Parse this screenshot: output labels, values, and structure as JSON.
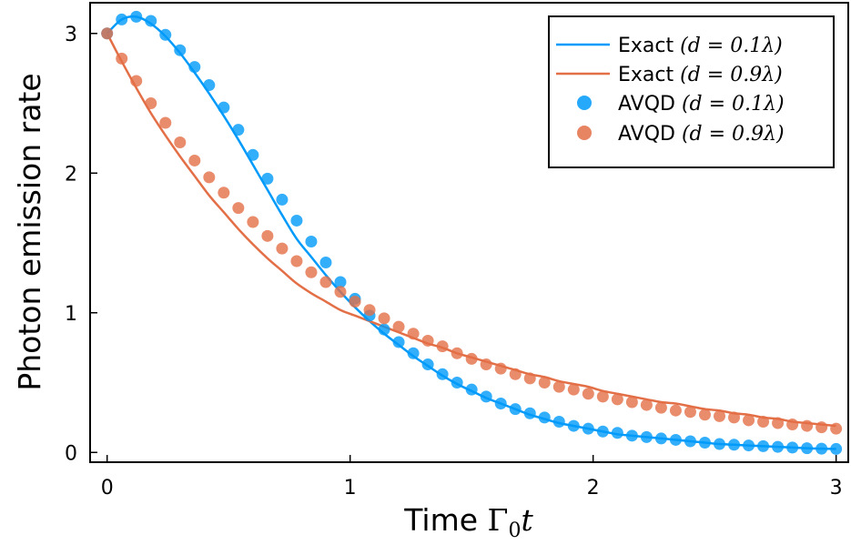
{
  "chart_data": {
    "type": "scatter",
    "xlabel_prefix": "Time",
    "xlabel_math_symbol": "Γ",
    "xlabel_math_sub": "0",
    "xlabel_math_var": "t",
    "ylabel": "Photon emission rate",
    "xlim": [
      -0.07,
      3.05
    ],
    "ylim": [
      -0.07,
      3.22
    ],
    "x_ticks": [
      0,
      1,
      2,
      3
    ],
    "x_tick_labels": [
      "0",
      "1",
      "2",
      "3"
    ],
    "y_ticks": [
      0,
      1,
      2,
      3
    ],
    "y_tick_labels": [
      "0",
      "1",
      "2",
      "3"
    ],
    "grid": false,
    "legend_position": "top-right",
    "colors": {
      "blue": "#009AFA",
      "orange": "#E36F47",
      "frame": "#000000"
    },
    "legend": [
      {
        "label": "Exact",
        "math": "(d = 0.1λ)",
        "kind": "line",
        "color": "#009AFA"
      },
      {
        "label": "Exact",
        "math": "(d = 0.9λ)",
        "kind": "line",
        "color": "#E36F47"
      },
      {
        "label": "AVQD",
        "math": "(d = 0.1λ)",
        "kind": "marker",
        "color": "#009AFA"
      },
      {
        "label": "AVQD",
        "math": "(d = 0.9λ)",
        "kind": "marker",
        "color": "#E36F47"
      }
    ],
    "series": [
      {
        "name": "Exact (d = 0.1λ)",
        "kind": "line",
        "color": "#009AFA",
        "x": [
          0,
          0.06,
          0.12,
          0.18,
          0.24,
          0.3,
          0.36,
          0.42,
          0.48,
          0.54,
          0.6,
          0.66,
          0.72,
          0.78,
          0.84,
          0.9,
          0.96,
          1.02,
          1.08,
          1.14,
          1.2,
          1.26,
          1.32,
          1.38,
          1.44,
          1.5,
          1.56,
          1.62,
          1.68,
          1.74,
          1.8,
          1.86,
          1.92,
          1.98,
          2.04,
          2.1,
          2.16,
          2.22,
          2.28,
          2.34,
          2.4,
          2.46,
          2.52,
          2.58,
          2.64,
          2.7,
          2.76,
          2.82,
          2.88,
          2.94,
          3.0
        ],
        "y": [
          3.0,
          3.1,
          3.12,
          3.07,
          2.98,
          2.86,
          2.72,
          2.57,
          2.41,
          2.24,
          2.06,
          1.88,
          1.7,
          1.53,
          1.4,
          1.27,
          1.15,
          1.04,
          0.94,
          0.85,
          0.77,
          0.69,
          0.62,
          0.55,
          0.49,
          0.44,
          0.39,
          0.35,
          0.31,
          0.27,
          0.24,
          0.21,
          0.19,
          0.17,
          0.15,
          0.13,
          0.12,
          0.11,
          0.1,
          0.09,
          0.08,
          0.07,
          0.06,
          0.055,
          0.05,
          0.045,
          0.04,
          0.035,
          0.03,
          0.027,
          0.025
        ]
      },
      {
        "name": "Exact (d = 0.9λ)",
        "kind": "line",
        "color": "#E36F47",
        "x": [
          0,
          0.06,
          0.12,
          0.18,
          0.24,
          0.3,
          0.36,
          0.42,
          0.48,
          0.54,
          0.6,
          0.66,
          0.72,
          0.78,
          0.84,
          0.9,
          0.96,
          1.02,
          1.08,
          1.14,
          1.2,
          1.26,
          1.32,
          1.38,
          1.44,
          1.5,
          1.56,
          1.62,
          1.68,
          1.74,
          1.8,
          1.86,
          1.92,
          1.98,
          2.04,
          2.1,
          2.16,
          2.22,
          2.28,
          2.34,
          2.4,
          2.46,
          2.52,
          2.58,
          2.64,
          2.7,
          2.76,
          2.82,
          2.88,
          2.94,
          3.0
        ],
        "y": [
          3.0,
          2.8,
          2.61,
          2.43,
          2.27,
          2.12,
          1.98,
          1.84,
          1.72,
          1.6,
          1.49,
          1.39,
          1.3,
          1.21,
          1.14,
          1.08,
          1.02,
          0.98,
          0.94,
          0.9,
          0.86,
          0.82,
          0.78,
          0.75,
          0.71,
          0.68,
          0.65,
          0.62,
          0.59,
          0.56,
          0.54,
          0.51,
          0.49,
          0.47,
          0.44,
          0.42,
          0.4,
          0.38,
          0.36,
          0.35,
          0.33,
          0.31,
          0.3,
          0.28,
          0.27,
          0.25,
          0.24,
          0.22,
          0.21,
          0.2,
          0.19
        ]
      },
      {
        "name": "AVQD (d = 0.1λ)",
        "kind": "marker",
        "color": "#009AFA",
        "x": [
          0,
          0.06,
          0.12,
          0.18,
          0.24,
          0.3,
          0.36,
          0.42,
          0.48,
          0.54,
          0.6,
          0.66,
          0.72,
          0.78,
          0.84,
          0.9,
          0.96,
          1.02,
          1.08,
          1.14,
          1.2,
          1.26,
          1.32,
          1.38,
          1.44,
          1.5,
          1.56,
          1.62,
          1.68,
          1.74,
          1.8,
          1.86,
          1.92,
          1.98,
          2.04,
          2.1,
          2.16,
          2.22,
          2.28,
          2.34,
          2.4,
          2.46,
          2.52,
          2.58,
          2.64,
          2.7,
          2.76,
          2.82,
          2.88,
          2.94,
          3.0
        ],
        "y": [
          3.0,
          3.1,
          3.12,
          3.09,
          2.99,
          2.88,
          2.76,
          2.63,
          2.47,
          2.31,
          2.13,
          1.96,
          1.81,
          1.66,
          1.51,
          1.36,
          1.22,
          1.1,
          0.98,
          0.88,
          0.79,
          0.71,
          0.63,
          0.56,
          0.5,
          0.45,
          0.4,
          0.35,
          0.31,
          0.28,
          0.25,
          0.22,
          0.19,
          0.17,
          0.15,
          0.14,
          0.12,
          0.11,
          0.1,
          0.09,
          0.08,
          0.07,
          0.06,
          0.055,
          0.05,
          0.045,
          0.04,
          0.035,
          0.03,
          0.027,
          0.025
        ]
      },
      {
        "name": "AVQD (d = 0.9λ)",
        "kind": "marker",
        "color": "#E36F47",
        "x": [
          0,
          0.06,
          0.12,
          0.18,
          0.24,
          0.3,
          0.36,
          0.42,
          0.48,
          0.54,
          0.6,
          0.66,
          0.72,
          0.78,
          0.84,
          0.9,
          0.96,
          1.02,
          1.08,
          1.14,
          1.2,
          1.26,
          1.32,
          1.38,
          1.44,
          1.5,
          1.56,
          1.62,
          1.68,
          1.74,
          1.8,
          1.86,
          1.92,
          1.98,
          2.04,
          2.1,
          2.16,
          2.22,
          2.28,
          2.34,
          2.4,
          2.46,
          2.52,
          2.58,
          2.64,
          2.7,
          2.76,
          2.82,
          2.88,
          2.94,
          3.0
        ],
        "y": [
          3.0,
          2.82,
          2.66,
          2.5,
          2.36,
          2.22,
          2.09,
          1.97,
          1.86,
          1.75,
          1.65,
          1.55,
          1.46,
          1.37,
          1.29,
          1.22,
          1.15,
          1.08,
          1.02,
          0.96,
          0.9,
          0.85,
          0.8,
          0.76,
          0.71,
          0.67,
          0.63,
          0.6,
          0.56,
          0.53,
          0.5,
          0.47,
          0.45,
          0.42,
          0.4,
          0.38,
          0.36,
          0.34,
          0.32,
          0.3,
          0.29,
          0.27,
          0.26,
          0.25,
          0.23,
          0.22,
          0.21,
          0.2,
          0.19,
          0.18,
          0.17
        ]
      }
    ]
  }
}
